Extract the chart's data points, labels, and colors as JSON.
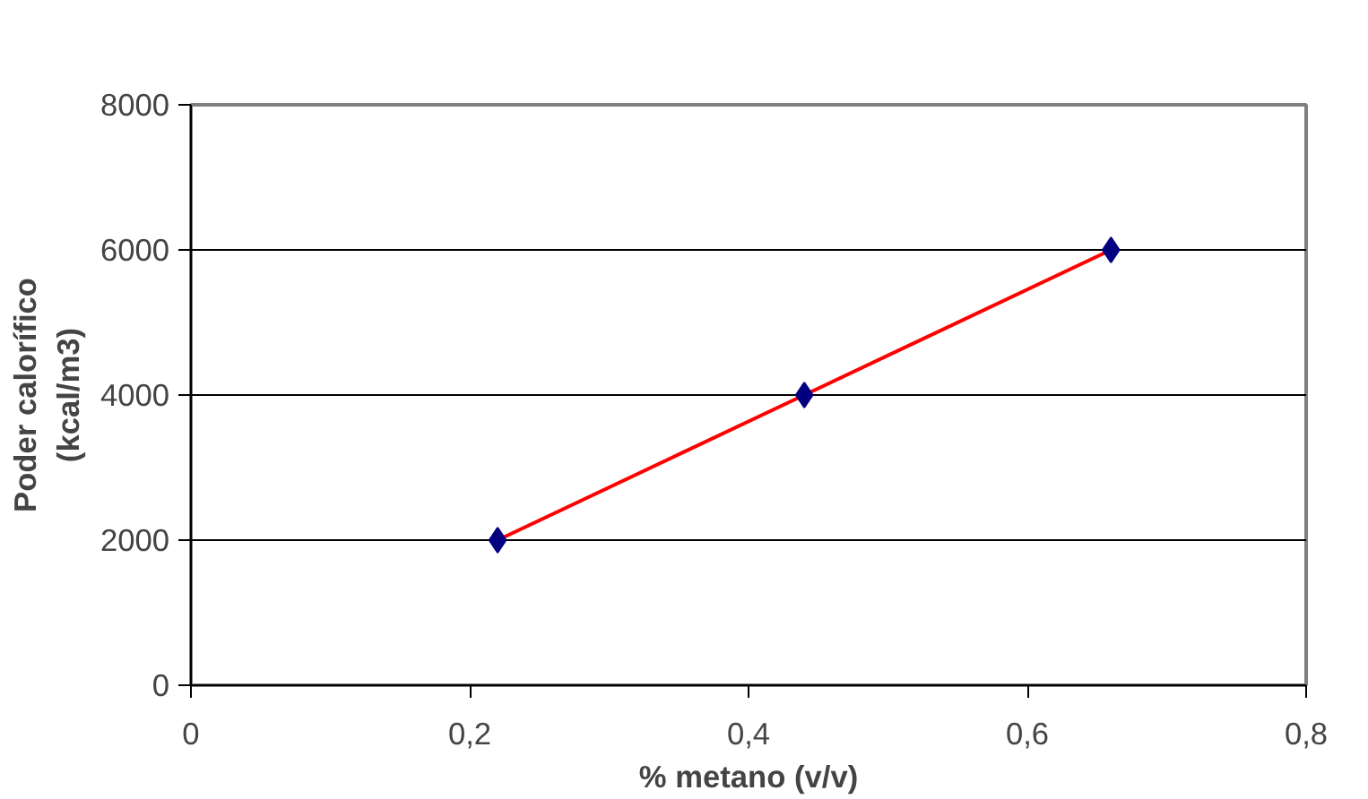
{
  "chart_data": {
    "type": "line",
    "xlabel": "% metano (v/v)",
    "ylabel": "Poder calorífico\n(kcal/m3)",
    "x": [
      0.22,
      0.44,
      0.66
    ],
    "series": [
      {
        "color": "#ff0000",
        "values": [
          2000,
          4000,
          6000
        ],
        "marker": "none"
      },
      {
        "type": "scatter",
        "color": "#000080",
        "values": [
          2000,
          4000,
          6000
        ],
        "marker": "diamond"
      }
    ],
    "xlim": [
      0,
      0.8
    ],
    "xticks": [
      0,
      {
        "value": 0.2,
        "label": "0,2"
      },
      {
        "value": 0.4,
        "label": "0,4"
      },
      {
        "value": 0.6,
        "label": "0,6"
      },
      {
        "value": 0.8,
        "label": "0,8"
      }
    ],
    "ylim": [
      0,
      8000
    ],
    "yticks": [
      0,
      2000,
      4000,
      6000,
      8000
    ],
    "grid": "y"
  }
}
